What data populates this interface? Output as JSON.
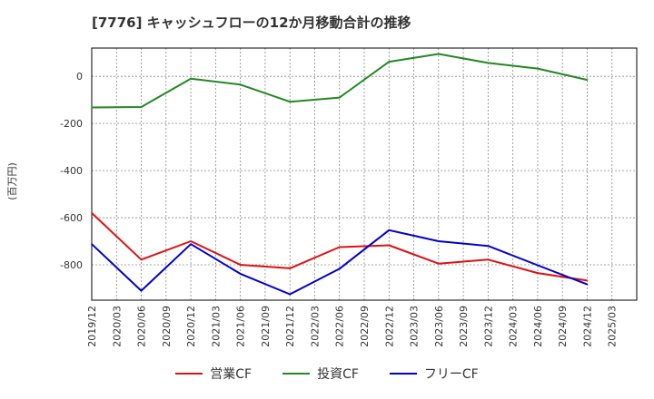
{
  "chart_data": {
    "type": "line",
    "title": "[7776]  キャッシュフローの12か月移動合計の推移",
    "ylabel": "(百万円)",
    "xlabel": "",
    "x": [
      "2019/12",
      "2020/06",
      "2020/12",
      "2021/06",
      "2021/12",
      "2022/06",
      "2022/12",
      "2023/06",
      "2023/12",
      "2024/06",
      "2024/12"
    ],
    "x_ticks": [
      "2019/12",
      "2020/03",
      "2020/06",
      "2020/09",
      "2020/12",
      "2021/03",
      "2021/06",
      "2021/09",
      "2021/12",
      "2022/03",
      "2022/06",
      "2022/09",
      "2022/12",
      "2023/03",
      "2023/06",
      "2023/09",
      "2023/12",
      "2024/03",
      "2024/06",
      "2024/09",
      "2024/12",
      "2025/03"
    ],
    "y_ticks": [
      0,
      -200,
      -400,
      -600,
      -800
    ],
    "ylim": [
      -950,
      120
    ],
    "grid": true,
    "legend_position": "bottom",
    "series": [
      {
        "name": "営業CF",
        "color": "#dd1111",
        "values": [
          -580,
          -778,
          -700,
          -800,
          -815,
          -725,
          -717,
          -795,
          -778,
          -835,
          -867
        ]
      },
      {
        "name": "投資CF",
        "color": "#228822",
        "values": [
          -132,
          -130,
          -10,
          -35,
          -108,
          -90,
          62,
          95,
          57,
          33,
          -15
        ]
      },
      {
        "name": "フリーCF",
        "color": "#0000cc",
        "values": [
          -712,
          -910,
          -712,
          -838,
          -925,
          -817,
          -653,
          -700,
          -720,
          -802,
          -883
        ]
      }
    ]
  }
}
